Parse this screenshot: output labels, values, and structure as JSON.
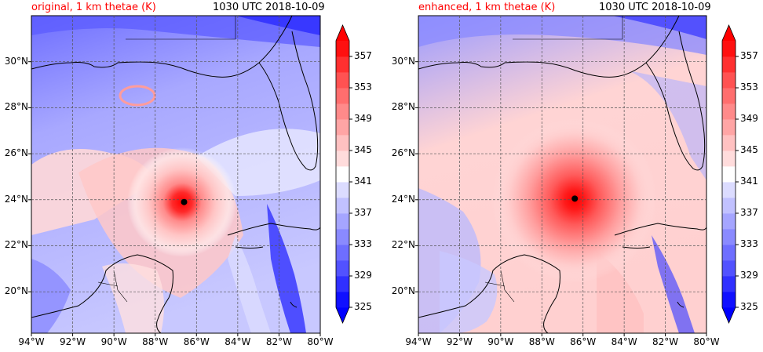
{
  "panels": [
    {
      "title": "original, 1 km thetae (K)",
      "datetime": "1030 UTC 2018-10-09",
      "storm_center": {
        "lon": -86.6,
        "lat": 23.9
      }
    },
    {
      "title": "enhanced, 1 km thetae (K)",
      "datetime": "1030 UTC 2018-10-09",
      "storm_center": {
        "lon": -86.4,
        "lat": 24.05
      }
    }
  ],
  "map": {
    "lon_range": [
      -94,
      -80
    ],
    "lat_range": [
      18.2,
      32
    ],
    "lon_ticks": [
      -94,
      -92,
      -90,
      -88,
      -86,
      -84,
      -82,
      -80
    ],
    "lat_ticks": [
      20,
      22,
      24,
      26,
      28,
      30
    ],
    "lon_labels": [
      "94°W",
      "92°W",
      "90°W",
      "88°W",
      "86°W",
      "84°W",
      "82°W",
      "80°W"
    ],
    "lat_labels": [
      "20°N",
      "22°N",
      "24°N",
      "26°N",
      "28°N",
      "30°N"
    ]
  },
  "colorbar": {
    "levels": [
      325,
      327,
      329,
      331,
      333,
      335,
      337,
      339,
      341,
      343,
      345,
      347,
      349,
      351,
      353,
      355,
      357,
      359
    ],
    "tick_values": [
      325,
      329,
      333,
      337,
      341,
      345,
      349,
      353,
      357
    ],
    "tick_labels": [
      "325",
      "329",
      "333",
      "337",
      "341",
      "345",
      "349",
      "353",
      "357"
    ],
    "colors": [
      "#1010ff",
      "#3030ff",
      "#5252ff",
      "#6e6eff",
      "#8a8aff",
      "#a5a5ff",
      "#c1c1ff",
      "#dcdcff",
      "#ffffff",
      "#ffdcdc",
      "#ffc1c1",
      "#ffa5a5",
      "#ff8a8a",
      "#ff6e6e",
      "#ff5252",
      "#ff3030",
      "#ff1010"
    ],
    "extend_low_color": "#0000ff",
    "extend_high_color": "#ff0000"
  }
}
